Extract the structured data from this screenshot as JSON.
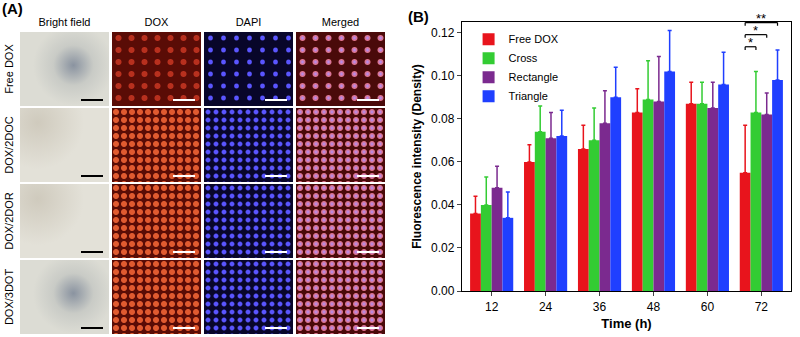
{
  "panel_a": {
    "label": "(A)",
    "columns": [
      "Bright field",
      "DOX",
      "DAPI",
      "Merged"
    ],
    "rows": [
      "Free DOX",
      "DOX/2DOC",
      "DOX/2DOR",
      "DOX/3DOT"
    ]
  },
  "chart_data": {
    "type": "bar",
    "panel_label": "(B)",
    "x_label": "Time (h)",
    "y_label": "Fluorescence intensity (Density)",
    "categories": [
      "12",
      "24",
      "36",
      "48",
      "60",
      "72"
    ],
    "series": [
      {
        "name": "Free DOX",
        "color": "#e8141c",
        "values": [
          0.036,
          0.06,
          0.066,
          0.083,
          0.087,
          0.055
        ],
        "errors": [
          0.008,
          0.008,
          0.011,
          0.011,
          0.01,
          0.022
        ]
      },
      {
        "name": "Cross",
        "color": "#33cc33",
        "values": [
          0.04,
          0.074,
          0.07,
          0.089,
          0.087,
          0.083
        ],
        "errors": [
          0.013,
          0.012,
          0.015,
          0.018,
          0.01,
          0.019
        ]
      },
      {
        "name": "Rectangle",
        "color": "#7b2a8f",
        "values": [
          0.048,
          0.071,
          0.078,
          0.088,
          0.085,
          0.082
        ],
        "errors": [
          0.01,
          0.012,
          0.015,
          0.021,
          0.012,
          0.01
        ]
      },
      {
        "name": "Triangle",
        "color": "#1f3fff",
        "values": [
          0.034,
          0.072,
          0.09,
          0.102,
          0.096,
          0.098
        ],
        "errors": [
          0.012,
          0.012,
          0.014,
          0.019,
          0.015,
          0.014
        ]
      }
    ],
    "ylim": [
      0,
      0.125
    ],
    "yticks": [
      {
        "value": 0,
        "label": "0.00"
      },
      {
        "value": 0.02,
        "label": "0.02"
      },
      {
        "value": 0.04,
        "label": "0.04"
      },
      {
        "value": 0.06,
        "label": "0.06"
      },
      {
        "value": 0.08,
        "label": "0.08"
      },
      {
        "value": 0.1,
        "label": "0.10"
      },
      {
        "value": 0.12,
        "label": "0.12"
      }
    ],
    "grid": false,
    "legend": "upper left",
    "annotations": [
      {
        "text": "**",
        "category": "72",
        "from": "Free DOX",
        "to": "Triangle"
      },
      {
        "text": "*",
        "category": "72",
        "from": "Free DOX",
        "to": "Rectangle"
      },
      {
        "text": "*",
        "category": "72",
        "from": "Free DOX",
        "to": "Cross"
      }
    ]
  }
}
